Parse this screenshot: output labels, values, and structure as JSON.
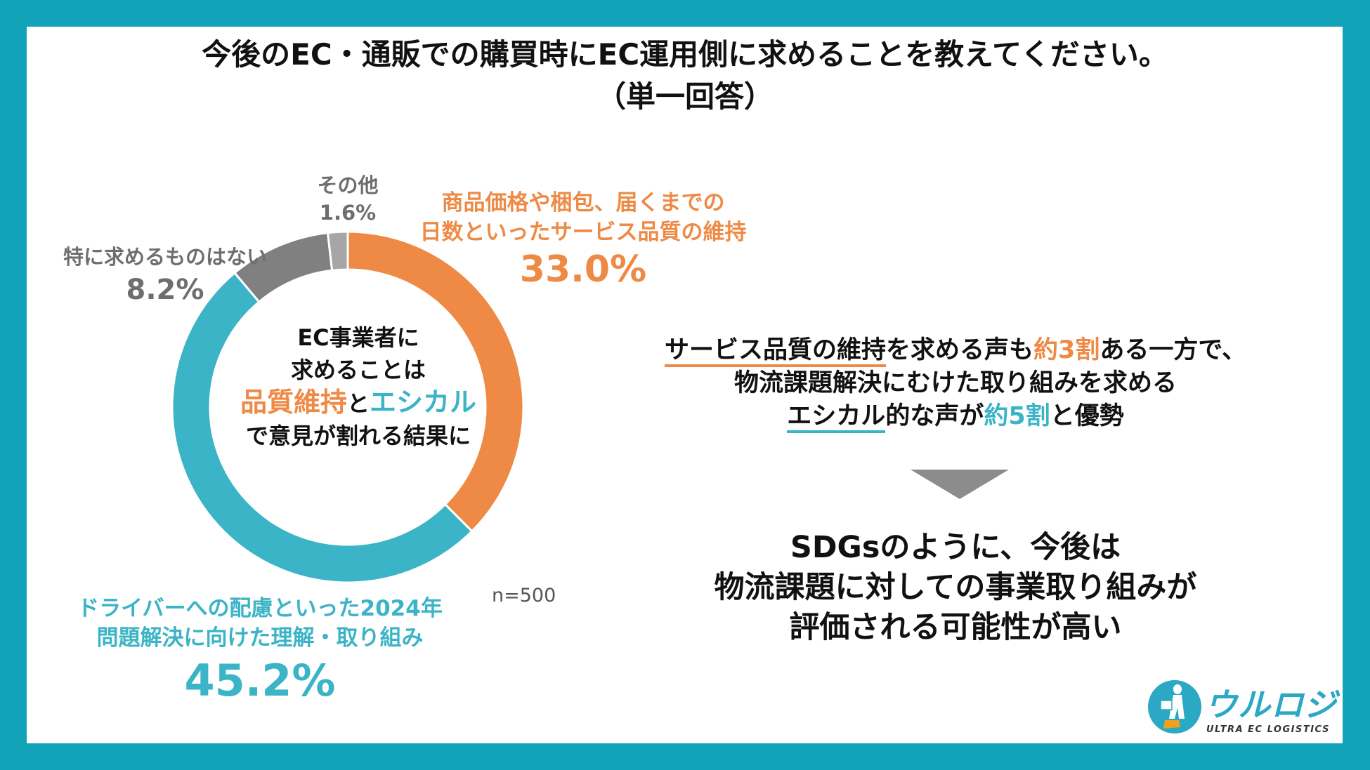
{
  "title": {
    "line1": "今後のEC・通販での購買時にEC運用側に求めることを教えてください。",
    "line2": "（単一回答）"
  },
  "center": {
    "line1": "EC事業者に",
    "line2": "求めることは",
    "quality": "品質維持",
    "to": "と",
    "ethical": "エシカル",
    "line4": "で意見が割れる結果に"
  },
  "labels": {
    "quality": {
      "line1": "商品価格や梱包、届くまでの",
      "line2": "日数といったサービス品質の維持",
      "pct": "33.0%"
    },
    "ethical": {
      "line1": "ドライバーへの配慮といった2024年",
      "line2": "問題解決に向けた理解・取り組み",
      "pct": "45.2%"
    },
    "none": {
      "line1": "特に求めるものはない",
      "pct": "8.2%"
    },
    "other": {
      "line1": "その他",
      "pct": "1.6%"
    }
  },
  "sample": "n=500",
  "summary": {
    "l1a": "サービス品質の維持",
    "l1b": "を求める声も",
    "l1c": "約3割",
    "l1d": "ある一方で、",
    "l2": "物流課題解決にむけた取り組みを求める",
    "l3a": "エシカル",
    "l3b": "的な声が",
    "l3c": "約5割",
    "l3d": "と優勢"
  },
  "conclusion": {
    "line1": "SDGsのように、今後は",
    "line2": "物流課題に対しての事業取り組みが",
    "line3": "評価される可能性が高い"
  },
  "logo": {
    "name": "ウルロジ",
    "sub": "ULTRA EC LOGISTICS"
  },
  "colors": {
    "frame": "#12a3b9",
    "orange": "#ee8a45",
    "teal": "#3ab4c6",
    "gray": "#808080",
    "lightgray": "#a6a6a6"
  },
  "chart_data": {
    "type": "pie",
    "donut": true,
    "title": "今後のEC・通販での購買時にEC運用側に求めることを教えてください。（単一回答）",
    "categories": [
      "商品価格や梱包、届くまでの日数といったサービス品質の維持",
      "ドライバーへの配慮といった2024年問題解決に向けた理解・取り組み",
      "特に求めるものはない",
      "その他"
    ],
    "values": [
      33.0,
      45.2,
      8.2,
      1.6
    ],
    "colors": [
      "#ee8a45",
      "#3ab4c6",
      "#808080",
      "#a6a6a6"
    ],
    "unit": "%",
    "sample_size": "n=500"
  }
}
